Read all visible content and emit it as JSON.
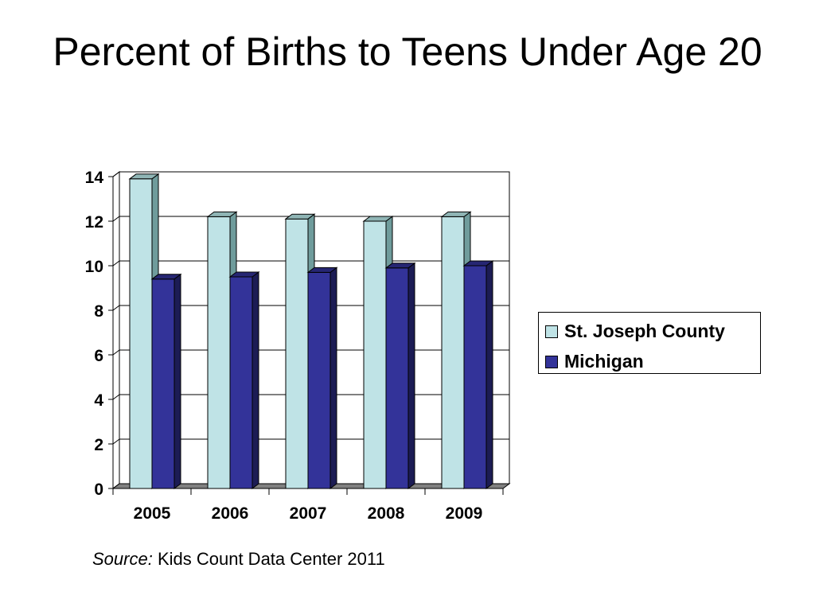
{
  "slide": {
    "title": "Percent of Births to Teens Under Age 20",
    "source_label": "Source:",
    "source_text": "Kids Count Data Center 2011"
  },
  "chart_data": {
    "type": "bar",
    "title": "",
    "categories": [
      "2005",
      "2006",
      "2007",
      "2008",
      "2009"
    ],
    "series": [
      {
        "name": "St. Joseph County",
        "values": [
          13.9,
          12.2,
          12.1,
          12.0,
          12.2
        ],
        "color": "#bfe3e6"
      },
      {
        "name": "Michigan",
        "values": [
          9.4,
          9.5,
          9.7,
          9.9,
          10.0
        ],
        "color": "#333399"
      }
    ],
    "ylim": [
      0,
      14
    ],
    "yticks": [
      "0",
      "2",
      "4",
      "6",
      "8",
      "10",
      "12",
      "14"
    ],
    "xlabel": "",
    "ylabel": "",
    "grid": true,
    "legend_position": "right",
    "style": "3d-clustered"
  }
}
